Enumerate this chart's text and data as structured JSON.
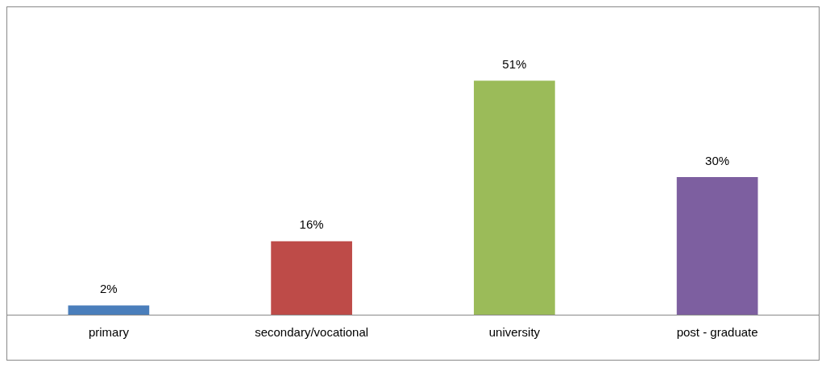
{
  "chart_data": {
    "type": "bar",
    "categories": [
      "primary",
      "secondary/vocational",
      "university",
      "post - graduate"
    ],
    "values": [
      2,
      16,
      51,
      30
    ],
    "colors": [
      "#4a7ebb",
      "#be4b48",
      "#9bbb59",
      "#7d5fa0"
    ],
    "value_labels": [
      "2%",
      "16%",
      "51%",
      "30%"
    ],
    "grid": false,
    "legend": false
  }
}
